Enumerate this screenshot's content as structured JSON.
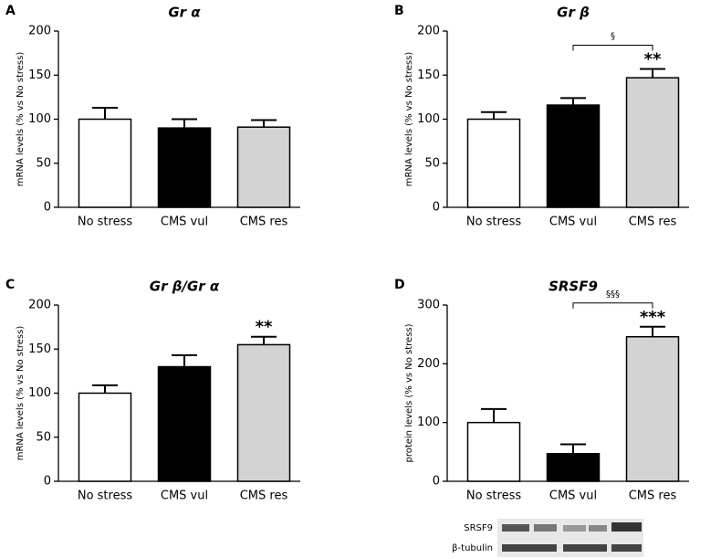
{
  "chart_data": [
    {
      "type": "bar",
      "panel": "A",
      "title": "Gr α",
      "y_label": "mRNA levels (% vs No stress)",
      "categories": [
        "No stress",
        "CMS vul",
        "CMS res"
      ],
      "values": [
        100,
        90,
        91
      ],
      "errors": [
        13,
        10,
        8
      ],
      "colors": [
        "#ffffff",
        "#000000",
        "#d3d3d3"
      ],
      "ylim": [
        0,
        200
      ],
      "yticks": [
        0,
        50,
        100,
        150,
        200
      ]
    },
    {
      "type": "bar",
      "panel": "B",
      "title": "Gr β",
      "y_label": "mRNA levels (% vs No stress)",
      "categories": [
        "No stress",
        "CMS vul",
        "CMS res"
      ],
      "values": [
        100,
        116,
        147
      ],
      "errors": [
        8,
        8,
        10
      ],
      "colors": [
        "#ffffff",
        "#000000",
        "#d3d3d3"
      ],
      "ylim": [
        0,
        200
      ],
      "yticks": [
        0,
        50,
        100,
        150,
        200
      ],
      "star_label": "**",
      "bracket_label": "§"
    },
    {
      "type": "bar",
      "panel": "C",
      "title": "Gr β/Gr α",
      "y_label": "mRNA levels (% vs No stress)",
      "categories": [
        "No stress",
        "CMS vul",
        "CMS res"
      ],
      "values": [
        100,
        130,
        155
      ],
      "errors": [
        9,
        13,
        9
      ],
      "colors": [
        "#ffffff",
        "#000000",
        "#d3d3d3"
      ],
      "ylim": [
        0,
        200
      ],
      "yticks": [
        0,
        50,
        100,
        150,
        200
      ],
      "star_label": "**"
    },
    {
      "type": "bar",
      "panel": "D",
      "title": "SRSF9",
      "y_label": "protein levels (% vs No stress)",
      "categories": [
        "No stress",
        "CMS vul",
        "CMS res"
      ],
      "values": [
        100,
        47,
        246
      ],
      "errors": [
        23,
        16,
        17
      ],
      "colors": [
        "#ffffff",
        "#000000",
        "#d3d3d3"
      ],
      "ylim": [
        0,
        300
      ],
      "yticks": [
        0,
        100,
        200,
        300
      ],
      "star_label": "***",
      "bracket_label": "§§§",
      "blot_labels": [
        "SRSF9",
        "β-tubulin"
      ]
    }
  ]
}
